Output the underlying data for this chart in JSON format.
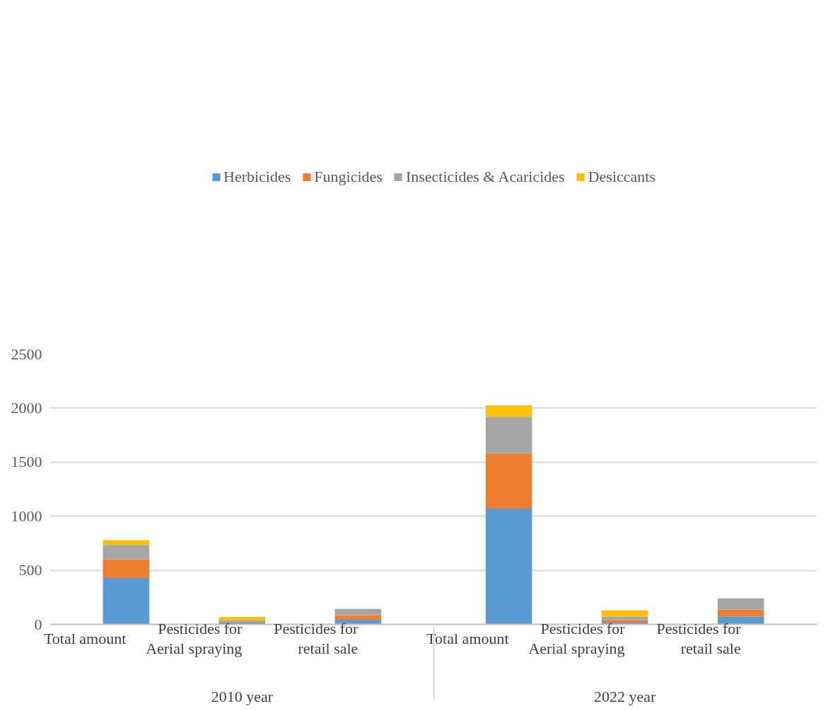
{
  "chart_data": {
    "type": "bar",
    "stacked": true,
    "categories": [
      "Total amount",
      "Pesticides for\nAerial spraying",
      "Pesticides for\nretail sale",
      "Total amount",
      "Pesticides for\nAerial spraying",
      "Pesticides for\nretail sale"
    ],
    "annotations": [
      "2010 year",
      "2022 year"
    ],
    "series": [
      {
        "name": "Herbicides",
        "color": "#5b9bd5",
        "values": [
          428,
          16,
          43,
          1070,
          16,
          72
        ]
      },
      {
        "name": "Fungicides",
        "color": "#ed7d31",
        "values": [
          172,
          5,
          42,
          512,
          21,
          63
        ]
      },
      {
        "name": "Insecticides & Acaricides",
        "color": "#a5a5a5",
        "values": [
          134,
          17,
          58,
          337,
          35,
          105
        ]
      },
      {
        "name": "Desiccants",
        "color": "#ffc000",
        "values": [
          44,
          31,
          0,
          106,
          57,
          0
        ]
      }
    ],
    "ylim": [
      0,
      2500
    ],
    "yticks": [
      0,
      500,
      1000,
      1500,
      2000,
      2500
    ],
    "grid": "y",
    "legend": "top"
  }
}
